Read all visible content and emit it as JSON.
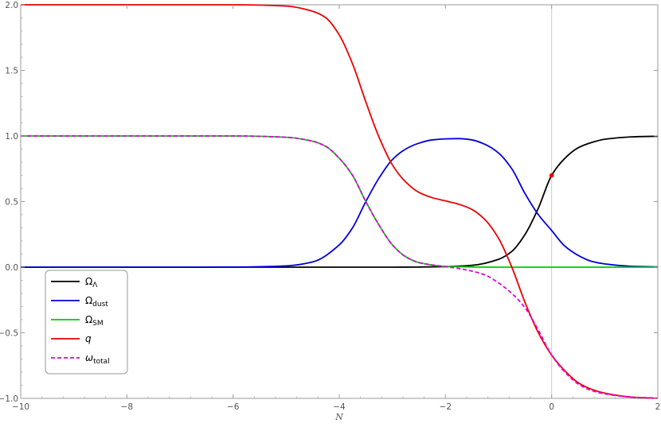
{
  "chart_data": {
    "type": "line",
    "title": "",
    "xlabel": "N",
    "ylabel": "",
    "xlim": [
      -10,
      2
    ],
    "ylim": [
      -1.0,
      2.0
    ],
    "grid": false,
    "x_ticks": [
      -10,
      -8,
      -6,
      -4,
      -2,
      0,
      2
    ],
    "x_tick_labels": [
      "−10",
      "−8",
      "−6",
      "−4",
      "−2",
      "0",
      "2"
    ],
    "y_ticks": [
      -1.0,
      -0.5,
      0.0,
      0.5,
      1.0,
      1.5,
      2.0
    ],
    "y_tick_labels": [
      "−1.0",
      "−0.5",
      "0.0",
      "0.5",
      "1.0",
      "1.5",
      "2.0"
    ],
    "vertical_line_x": 0,
    "marker": {
      "x": 0,
      "y": 0.7,
      "color": "#e00000"
    },
    "legend_position": "bottom-left",
    "series": [
      {
        "name": "ΩΛ",
        "name_main": "Ω",
        "name_sub": "Λ",
        "color": "#000000",
        "dash": false,
        "x": [
          -10,
          -9,
          -8,
          -7,
          -6,
          -5,
          -4,
          -3.5,
          -3,
          -2.5,
          -2,
          -1.5,
          -1,
          -0.75,
          -0.5,
          -0.25,
          0,
          0.25,
          0.5,
          0.75,
          1,
          1.5,
          2
        ],
        "y": [
          0,
          0,
          0,
          0,
          0,
          0,
          0,
          0,
          0,
          0.001,
          0.004,
          0.014,
          0.06,
          0.12,
          0.25,
          0.45,
          0.7,
          0.83,
          0.91,
          0.95,
          0.975,
          0.993,
          0.998
        ]
      },
      {
        "name": "Ωdust",
        "name_main": "Ω",
        "name_sub": "dust",
        "color": "#0000dd",
        "dash": false,
        "x": [
          -10,
          -7,
          -6,
          -5,
          -4.5,
          -4,
          -3.75,
          -3.5,
          -3.25,
          -3,
          -2.75,
          -2.5,
          -2.25,
          -2,
          -1.75,
          -1.5,
          -1.25,
          -1,
          -0.75,
          -0.5,
          -0.25,
          0,
          0.25,
          0.5,
          0.75,
          1,
          1.5,
          2
        ],
        "y": [
          0,
          0,
          0.001,
          0.01,
          0.04,
          0.17,
          0.3,
          0.5,
          0.68,
          0.82,
          0.9,
          0.945,
          0.97,
          0.978,
          0.98,
          0.97,
          0.935,
          0.87,
          0.75,
          0.56,
          0.4,
          0.28,
          0.16,
          0.09,
          0.045,
          0.025,
          0.007,
          0.002
        ]
      },
      {
        "name": "ΩSM",
        "name_main": "Ω",
        "name_sub": "SM",
        "color": "#00cc00",
        "dash": false,
        "x": [
          -10,
          -6,
          -5,
          -4.5,
          -4.25,
          -4,
          -3.75,
          -3.5,
          -3.25,
          -3,
          -2.75,
          -2.5,
          -2,
          -1.5,
          -1,
          0,
          2
        ],
        "y": [
          1.0,
          1.0,
          0.99,
          0.96,
          0.92,
          0.83,
          0.7,
          0.5,
          0.32,
          0.17,
          0.08,
          0.035,
          0.006,
          0.001,
          0,
          0,
          0
        ]
      },
      {
        "name": "q",
        "name_main": "q",
        "name_sub": "",
        "color": "#ee0000",
        "dash": false,
        "x": [
          -10,
          -6,
          -5,
          -4.5,
          -4.25,
          -4,
          -3.75,
          -3.5,
          -3.25,
          -3,
          -2.75,
          -2.5,
          -2.25,
          -2,
          -1.75,
          -1.5,
          -1.25,
          -1,
          -0.75,
          -0.5,
          -0.25,
          0,
          0.25,
          0.5,
          0.75,
          1,
          1.5,
          2
        ],
        "y": [
          2.0,
          2.0,
          1.99,
          1.95,
          1.9,
          1.77,
          1.55,
          1.26,
          0.99,
          0.78,
          0.65,
          0.57,
          0.53,
          0.505,
          0.48,
          0.44,
          0.36,
          0.22,
          0.0,
          -0.27,
          -0.5,
          -0.67,
          -0.79,
          -0.88,
          -0.93,
          -0.96,
          -0.99,
          -1.0
        ]
      },
      {
        "name": "ωtotal",
        "name_main": "ω",
        "name_sub": "total",
        "color": "#dd00dd",
        "dash": true,
        "x": [
          -10,
          -6,
          -5,
          -4.5,
          -4.25,
          -4,
          -3.75,
          -3.5,
          -3.25,
          -3,
          -2.75,
          -2.5,
          -2,
          -1.75,
          -1.5,
          -1.25,
          -1,
          -0.75,
          -0.5,
          -0.25,
          0,
          0.25,
          0.5,
          0.75,
          1,
          1.5,
          2
        ],
        "y": [
          1.0,
          1.0,
          0.99,
          0.96,
          0.92,
          0.83,
          0.7,
          0.5,
          0.32,
          0.17,
          0.08,
          0.035,
          0.004,
          -0.01,
          -0.03,
          -0.06,
          -0.12,
          -0.2,
          -0.31,
          -0.48,
          -0.67,
          -0.8,
          -0.89,
          -0.94,
          -0.965,
          -0.99,
          -0.998
        ]
      }
    ]
  }
}
